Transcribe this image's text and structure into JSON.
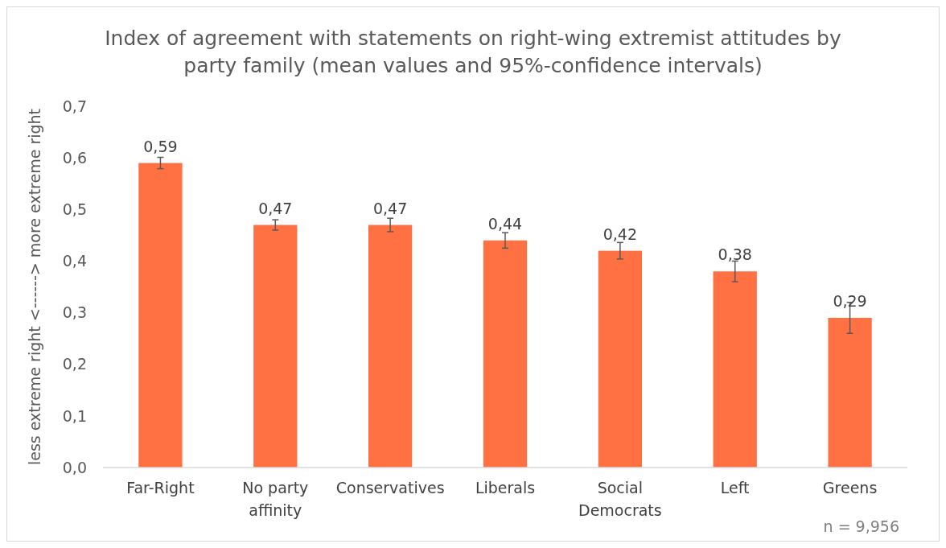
{
  "chart_data": {
    "type": "bar",
    "title": "Index of agreement with statements on right-wing extremist attitudes by party family (mean values and 95%-confidence intervals)",
    "ylabel": "less  extreme right <------> more extreme right",
    "categories": [
      "Far-Right",
      "No party affinity",
      "Conservatives",
      "Liberals",
      "Social Democrats",
      "Left",
      "Greens"
    ],
    "values": [
      0.59,
      0.47,
      0.47,
      0.44,
      0.42,
      0.38,
      0.29
    ],
    "errors": [
      0.011,
      0.01,
      0.013,
      0.015,
      0.016,
      0.02,
      0.03
    ],
    "value_labels": [
      "0,59",
      "0,47",
      "0,47",
      "0,44",
      "0,42",
      "0,38",
      "0,29"
    ],
    "color": "#ff7043",
    "ylim": [
      0,
      0.7
    ],
    "yticks": [
      {
        "value": 0,
        "label": "0,0"
      },
      {
        "value": 0.1,
        "label": "0,1"
      },
      {
        "value": 0.2,
        "label": "0,2"
      },
      {
        "value": 0.3,
        "label": "0,3"
      },
      {
        "value": 0.4,
        "label": "0,4"
      },
      {
        "value": 0.5,
        "label": "0,5"
      },
      {
        "value": 0.6,
        "label": "0,6"
      },
      {
        "value": 0.7,
        "label": "0,7"
      }
    ],
    "grid": false,
    "annotations": [
      "n = 9,956"
    ]
  }
}
